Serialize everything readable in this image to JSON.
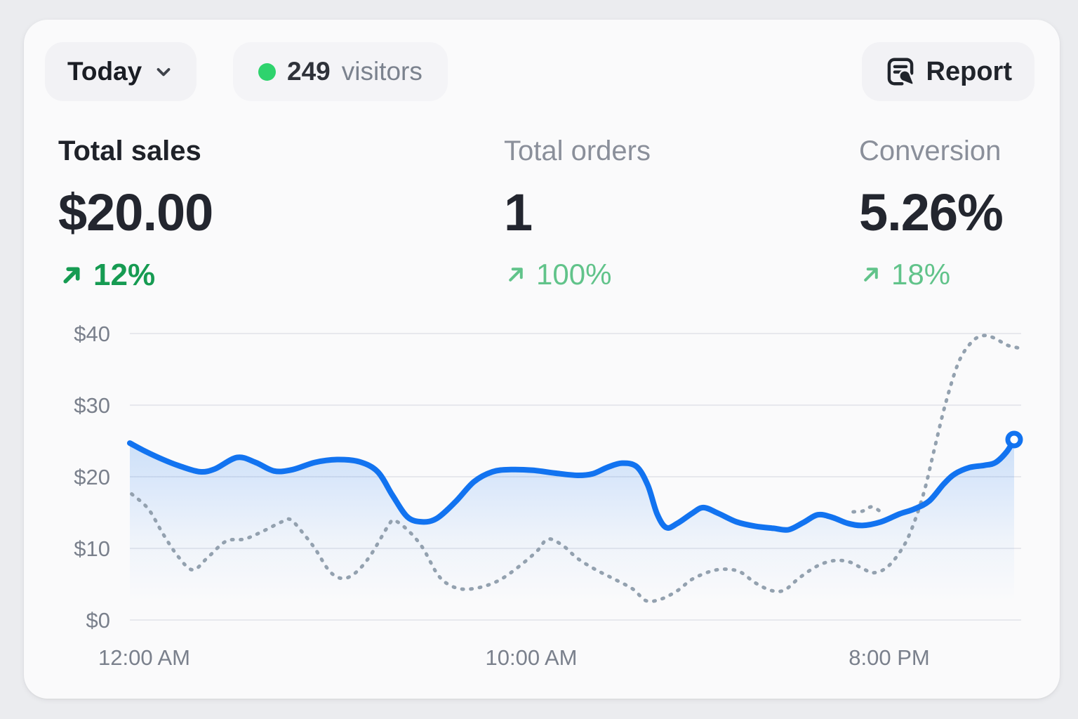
{
  "header": {
    "period_label": "Today",
    "visitors_count": "249",
    "visitors_label": "visitors",
    "report_label": "Report"
  },
  "metrics": [
    {
      "id": "total-sales",
      "label": "Total sales",
      "value": "$20.00",
      "delta": "12%",
      "trend": "up",
      "emphasized": true
    },
    {
      "id": "total-orders",
      "label": "Total orders",
      "value": "1",
      "delta": "100%",
      "trend": "up",
      "emphasized": false
    },
    {
      "id": "conversion",
      "label": "Conversion",
      "value": "5.26%",
      "delta": "18%",
      "trend": "up",
      "emphasized": false
    }
  ],
  "colors": {
    "accent_blue": "#1273f0",
    "comparison_gray": "#93a1af",
    "positive_green_bold": "#169b52",
    "positive_green_light": "#61c38a",
    "live_dot_green": "#2ed36d"
  },
  "chart_data": {
    "type": "line",
    "grid": "horizontal",
    "ylim": [
      0,
      40
    ],
    "x_hours_range": [
      0,
      24
    ],
    "y_ticks": [
      "$40",
      "$30",
      "$20",
      "$10",
      "$0"
    ],
    "x_ticks": [
      {
        "label": "12:00 AM",
        "hour": 0
      },
      {
        "label": "10:00 AM",
        "hour": 10
      },
      {
        "label": "8:00 PM",
        "hour": 20
      }
    ],
    "series": [
      {
        "name": "today-sales",
        "style": "solid",
        "color": "#1273f0",
        "area_fill": true,
        "end_marker": true,
        "points": [
          [
            0,
            24.7
          ],
          [
            0.4,
            23.6
          ],
          [
            0.9,
            22.4
          ],
          [
            1.4,
            21.4
          ],
          [
            1.9,
            20.7
          ],
          [
            2.3,
            21.1
          ],
          [
            2.9,
            22.7
          ],
          [
            3.4,
            22.0
          ],
          [
            3.9,
            20.8
          ],
          [
            4.4,
            21.0
          ],
          [
            5.0,
            22.0
          ],
          [
            5.6,
            22.4
          ],
          [
            6.2,
            22.1
          ],
          [
            6.7,
            20.7
          ],
          [
            7.1,
            17.4
          ],
          [
            7.5,
            14.4
          ],
          [
            7.9,
            13.7
          ],
          [
            8.3,
            14.2
          ],
          [
            8.8,
            16.5
          ],
          [
            9.3,
            19.3
          ],
          [
            9.8,
            20.7
          ],
          [
            10.3,
            21.0
          ],
          [
            10.9,
            20.9
          ],
          [
            11.5,
            20.5
          ],
          [
            12.1,
            20.2
          ],
          [
            12.5,
            20.4
          ],
          [
            12.9,
            21.3
          ],
          [
            13.3,
            21.9
          ],
          [
            13.7,
            21.4
          ],
          [
            14.0,
            18.8
          ],
          [
            14.25,
            14.8
          ],
          [
            14.5,
            12.9
          ],
          [
            14.8,
            13.5
          ],
          [
            15.2,
            14.9
          ],
          [
            15.5,
            15.7
          ],
          [
            15.9,
            14.9
          ],
          [
            16.4,
            13.7
          ],
          [
            16.9,
            13.1
          ],
          [
            17.4,
            12.8
          ],
          [
            17.8,
            12.6
          ],
          [
            18.2,
            13.6
          ],
          [
            18.6,
            14.7
          ],
          [
            19.0,
            14.3
          ],
          [
            19.4,
            13.5
          ],
          [
            19.8,
            13.2
          ],
          [
            20.3,
            13.7
          ],
          [
            20.8,
            14.8
          ],
          [
            21.2,
            15.5
          ],
          [
            21.6,
            16.6
          ],
          [
            22.0,
            19.0
          ],
          [
            22.3,
            20.4
          ],
          [
            22.7,
            21.3
          ],
          [
            23.1,
            21.6
          ],
          [
            23.4,
            22.0
          ],
          [
            23.7,
            23.5
          ],
          [
            23.9,
            25.2
          ]
        ]
      },
      {
        "name": "comparison-previous-period",
        "style": "dotted",
        "color": "#93a1af",
        "points": [
          [
            0.05,
            17.6
          ],
          [
            0.5,
            15.5
          ],
          [
            0.9,
            12.0
          ],
          [
            1.3,
            8.9
          ],
          [
            1.7,
            7.0
          ],
          [
            2.1,
            8.7
          ],
          [
            2.6,
            11.0
          ],
          [
            3.1,
            11.3
          ],
          [
            3.6,
            12.4
          ],
          [
            4.1,
            13.7
          ],
          [
            4.35,
            14.0
          ],
          [
            4.7,
            12.0
          ],
          [
            5.0,
            10.0
          ],
          [
            5.4,
            6.8
          ],
          [
            5.75,
            5.8
          ],
          [
            6.1,
            6.6
          ],
          [
            6.5,
            9.0
          ],
          [
            7.0,
            13.3
          ],
          [
            7.15,
            13.9
          ],
          [
            7.5,
            12.6
          ],
          [
            7.9,
            10.2
          ],
          [
            8.3,
            6.5
          ],
          [
            8.6,
            5.0
          ],
          [
            9.0,
            4.3
          ],
          [
            9.5,
            4.6
          ],
          [
            10.0,
            5.6
          ],
          [
            10.5,
            7.4
          ],
          [
            11.0,
            9.6
          ],
          [
            11.3,
            11.3
          ],
          [
            11.7,
            10.4
          ],
          [
            12.1,
            8.6
          ],
          [
            12.6,
            7.0
          ],
          [
            13.1,
            5.7
          ],
          [
            13.6,
            4.3
          ],
          [
            13.95,
            2.7
          ],
          [
            14.35,
            2.9
          ],
          [
            14.8,
            4.1
          ],
          [
            15.2,
            5.7
          ],
          [
            15.7,
            6.8
          ],
          [
            16.1,
            7.1
          ],
          [
            16.5,
            6.7
          ],
          [
            16.9,
            5.2
          ],
          [
            17.35,
            4.1
          ],
          [
            17.7,
            4.2
          ],
          [
            18.1,
            5.9
          ],
          [
            18.6,
            7.6
          ],
          [
            19.05,
            8.3
          ],
          [
            19.45,
            8.1
          ],
          [
            19.8,
            7.2
          ],
          [
            20.1,
            6.6
          ],
          [
            20.45,
            7.3
          ],
          [
            20.8,
            9.4
          ],
          [
            21.1,
            12.3
          ],
          [
            21.45,
            17.6
          ],
          [
            21.75,
            24.0
          ],
          [
            22.05,
            30.3
          ],
          [
            22.4,
            36.0
          ],
          [
            22.75,
            38.8
          ],
          [
            23.05,
            39.7
          ],
          [
            23.35,
            39.4
          ],
          [
            23.7,
            38.4
          ],
          [
            24.0,
            38.0
          ]
        ]
      },
      {
        "name": "comparison-fragment",
        "style": "dotted",
        "color": "#93a1af",
        "points": [
          [
            19.55,
            15.1
          ],
          [
            19.8,
            15.2
          ],
          [
            20.05,
            15.8
          ],
          [
            20.3,
            15.1
          ]
        ]
      }
    ]
  }
}
